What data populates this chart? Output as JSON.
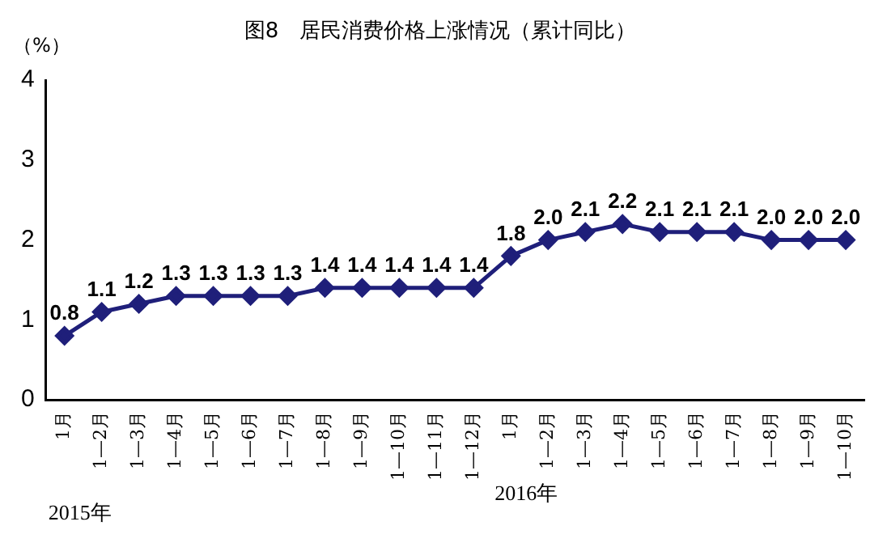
{
  "chart_data": {
    "type": "line",
    "title": "图8　居民消费价格上涨情况（累计同比）",
    "ylabel": "（%）",
    "categories": [
      "1月",
      "1—2月",
      "1—3月",
      "1—4月",
      "1—5月",
      "1—6月",
      "1—7月",
      "1—8月",
      "1—9月",
      "1—10月",
      "1—11月",
      "1—12月",
      "1月",
      "1—2月",
      "1—3月",
      "1—4月",
      "1—5月",
      "1—6月",
      "1—7月",
      "1—8月",
      "1—9月",
      "1—10月"
    ],
    "series": [
      {
        "color": "#1f1f7a",
        "values": [
          0.8,
          1.1,
          1.2,
          1.3,
          1.3,
          1.3,
          1.3,
          1.4,
          1.4,
          1.4,
          1.4,
          1.4,
          1.8,
          2.0,
          2.1,
          2.2,
          2.1,
          2.1,
          2.1,
          2.0,
          2.0,
          2.0
        ],
        "value_labels": [
          "0.8",
          "1.1",
          "1.2",
          "1.3",
          "1.3",
          "1.3",
          "1.3",
          "1.4",
          "1.4",
          "1.4",
          "1.4",
          "1.4",
          "1.8",
          "2.0",
          "2.1",
          "2.2",
          "2.1",
          "2.1",
          "2.1",
          "2.0",
          "2.0",
          "2.0"
        ]
      }
    ],
    "ylim": [
      0,
      4
    ],
    "yticks": [
      0,
      1,
      2,
      3,
      4
    ],
    "grid": false,
    "legend": false,
    "marker": "diamond",
    "line_style": "solid",
    "annotations": [
      "2015年",
      "2016年"
    ]
  }
}
